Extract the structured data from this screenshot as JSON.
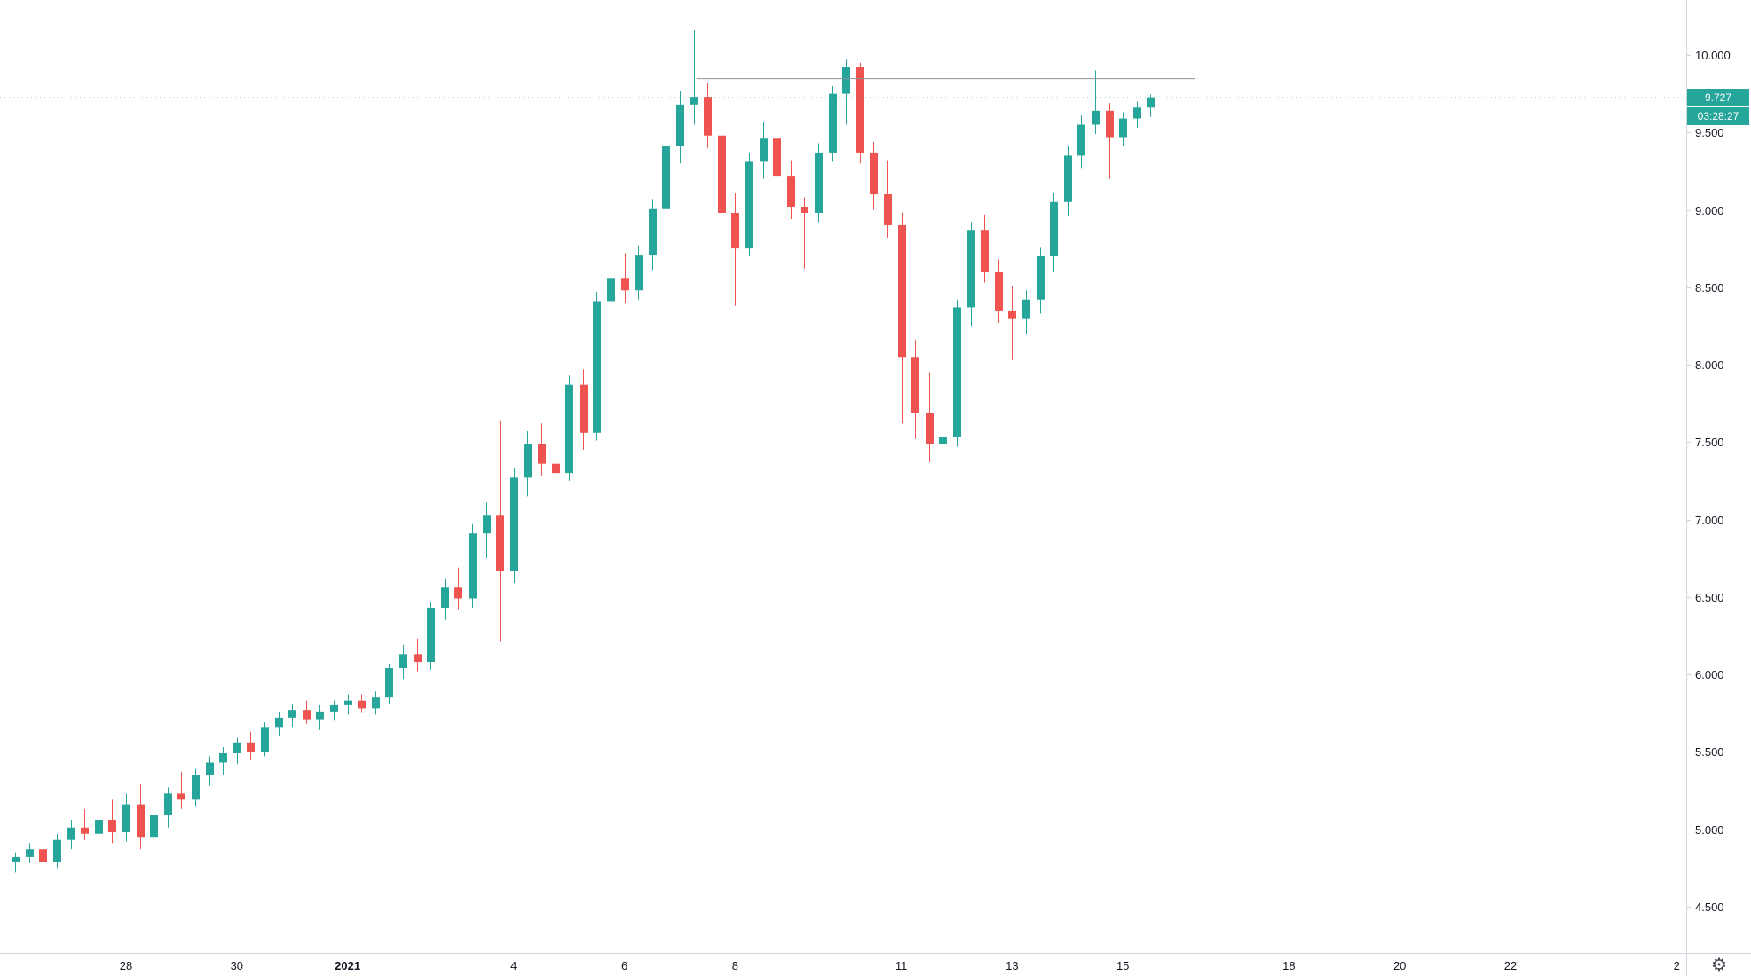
{
  "app": {
    "gear_icon": "⚙"
  },
  "colors": {
    "background": "#ffffff",
    "up": "#26a69a",
    "down": "#ef5350",
    "axis_line": "#d1d4dc",
    "axis_text": "#131722",
    "ray": "#8b8f99",
    "price_line": "#26a69a",
    "tag_bg": "#26a69a",
    "tag_text": "#ffffff"
  },
  "chart_data": {
    "type": "candlestick",
    "timeframe_per_candle_days": 0.25,
    "current_price": 9.727,
    "current_price_label": "9.727",
    "countdown": "03:28:27",
    "grid": "off",
    "y_axis": {
      "side": "right",
      "ticks": [
        "10.000",
        "9.500",
        "9.000",
        "8.500",
        "8.000",
        "7.500",
        "7.000",
        "6.500",
        "6.000",
        "5.500",
        "5.000",
        "4.500"
      ],
      "tick_values": [
        10.0,
        9.5,
        9.0,
        8.5,
        8.0,
        7.5,
        7.0,
        6.5,
        6.0,
        5.5,
        5.0,
        4.5
      ],
      "visible_range": [
        4.2,
        10.36
      ]
    },
    "x_axis": {
      "side": "bottom",
      "ticks": [
        {
          "label": "28",
          "day": 0
        },
        {
          "label": "30",
          "day": 2
        },
        {
          "label": "2021",
          "day": 4,
          "bold": true
        },
        {
          "label": "4",
          "day": 7
        },
        {
          "label": "6",
          "day": 9
        },
        {
          "label": "8",
          "day": 11
        },
        {
          "label": "11",
          "day": 14
        },
        {
          "label": "13",
          "day": 16
        },
        {
          "label": "15",
          "day": 18
        },
        {
          "label": "18",
          "day": 21
        },
        {
          "label": "20",
          "day": 23
        },
        {
          "label": "22",
          "day": 25
        },
        {
          "label": "2",
          "day": 28
        }
      ]
    },
    "horizontal_ray": {
      "price": 9.85,
      "from_day": 10.3,
      "to_day": 19.3
    },
    "start_day": -2.0,
    "candles": [
      [
        4.79,
        4.85,
        4.72,
        4.82
      ],
      [
        4.82,
        4.91,
        4.78,
        4.87
      ],
      [
        4.87,
        4.9,
        4.76,
        4.79
      ],
      [
        4.79,
        4.97,
        4.75,
        4.93
      ],
      [
        4.93,
        5.06,
        4.87,
        5.01
      ],
      [
        5.01,
        5.13,
        4.93,
        4.97
      ],
      [
        4.97,
        5.09,
        4.89,
        5.06
      ],
      [
        5.06,
        5.19,
        4.91,
        4.98
      ],
      [
        4.98,
        5.23,
        4.92,
        5.16
      ],
      [
        5.16,
        5.29,
        4.87,
        4.95
      ],
      [
        4.95,
        5.13,
        4.85,
        5.09
      ],
      [
        5.09,
        5.27,
        5.01,
        5.23
      ],
      [
        5.23,
        5.37,
        5.13,
        5.19
      ],
      [
        5.19,
        5.39,
        5.15,
        5.35
      ],
      [
        5.35,
        5.47,
        5.28,
        5.43
      ],
      [
        5.43,
        5.53,
        5.35,
        5.49
      ],
      [
        5.49,
        5.59,
        5.42,
        5.56
      ],
      [
        5.56,
        5.63,
        5.45,
        5.5
      ],
      [
        5.5,
        5.69,
        5.47,
        5.66
      ],
      [
        5.66,
        5.76,
        5.6,
        5.72
      ],
      [
        5.72,
        5.81,
        5.66,
        5.77
      ],
      [
        5.77,
        5.83,
        5.68,
        5.71
      ],
      [
        5.71,
        5.8,
        5.64,
        5.76
      ],
      [
        5.76,
        5.83,
        5.7,
        5.8
      ],
      [
        5.8,
        5.87,
        5.74,
        5.83
      ],
      [
        5.83,
        5.87,
        5.75,
        5.78
      ],
      [
        5.78,
        5.89,
        5.74,
        5.85
      ],
      [
        5.85,
        6.07,
        5.81,
        6.04
      ],
      [
        6.04,
        6.19,
        5.97,
        6.13
      ],
      [
        6.13,
        6.23,
        6.02,
        6.08
      ],
      [
        6.08,
        6.47,
        6.03,
        6.43
      ],
      [
        6.43,
        6.62,
        6.35,
        6.56
      ],
      [
        6.56,
        6.69,
        6.42,
        6.49
      ],
      [
        6.49,
        6.97,
        6.43,
        6.91
      ],
      [
        6.91,
        7.11,
        6.75,
        7.03
      ],
      [
        7.03,
        7.64,
        6.21,
        6.67
      ],
      [
        6.67,
        7.33,
        6.59,
        7.27
      ],
      [
        7.27,
        7.57,
        7.15,
        7.49
      ],
      [
        7.49,
        7.62,
        7.28,
        7.36
      ],
      [
        7.36,
        7.53,
        7.18,
        7.3
      ],
      [
        7.3,
        7.93,
        7.25,
        7.87
      ],
      [
        7.87,
        7.97,
        7.45,
        7.56
      ],
      [
        7.56,
        8.47,
        7.51,
        8.41
      ],
      [
        8.41,
        8.63,
        8.25,
        8.56
      ],
      [
        8.56,
        8.72,
        8.4,
        8.48
      ],
      [
        8.48,
        8.77,
        8.42,
        8.71
      ],
      [
        8.71,
        9.07,
        8.61,
        9.01
      ],
      [
        9.01,
        9.47,
        8.92,
        9.41
      ],
      [
        9.41,
        9.77,
        9.3,
        9.68
      ],
      [
        9.68,
        10.16,
        9.55,
        9.73
      ],
      [
        9.73,
        9.82,
        9.4,
        9.48
      ],
      [
        9.48,
        9.56,
        8.85,
        8.98
      ],
      [
        8.98,
        9.11,
        8.38,
        8.75
      ],
      [
        8.75,
        9.37,
        8.7,
        9.31
      ],
      [
        9.31,
        9.57,
        9.2,
        9.46
      ],
      [
        9.46,
        9.53,
        9.15,
        9.22
      ],
      [
        9.22,
        9.32,
        8.94,
        9.02
      ],
      [
        9.02,
        9.08,
        8.62,
        8.98
      ],
      [
        8.98,
        9.43,
        8.92,
        9.37
      ],
      [
        9.37,
        9.8,
        9.31,
        9.75
      ],
      [
        9.75,
        9.97,
        9.55,
        9.92
      ],
      [
        9.92,
        9.95,
        9.3,
        9.37
      ],
      [
        9.37,
        9.44,
        9.0,
        9.1
      ],
      [
        9.1,
        9.32,
        8.82,
        8.9
      ],
      [
        8.9,
        8.98,
        7.62,
        8.05
      ],
      [
        8.05,
        8.16,
        7.52,
        7.69
      ],
      [
        7.69,
        7.95,
        7.37,
        7.49
      ],
      [
        7.49,
        7.6,
        6.99,
        7.53
      ],
      [
        7.53,
        8.42,
        7.47,
        8.37
      ],
      [
        8.37,
        8.92,
        8.25,
        8.87
      ],
      [
        8.87,
        8.97,
        8.53,
        8.6
      ],
      [
        8.6,
        8.68,
        8.27,
        8.35
      ],
      [
        8.35,
        8.51,
        8.03,
        8.3
      ],
      [
        8.3,
        8.48,
        8.2,
        8.42
      ],
      [
        8.42,
        8.76,
        8.33,
        8.7
      ],
      [
        8.7,
        9.11,
        8.6,
        9.05
      ],
      [
        9.05,
        9.41,
        8.96,
        9.35
      ],
      [
        9.35,
        9.61,
        9.27,
        9.55
      ],
      [
        9.55,
        9.9,
        9.49,
        9.64
      ],
      [
        9.64,
        9.69,
        9.2,
        9.47
      ],
      [
        9.47,
        9.63,
        9.41,
        9.59
      ],
      [
        9.59,
        9.7,
        9.53,
        9.66
      ],
      [
        9.66,
        9.745,
        9.6,
        9.727
      ]
    ]
  }
}
